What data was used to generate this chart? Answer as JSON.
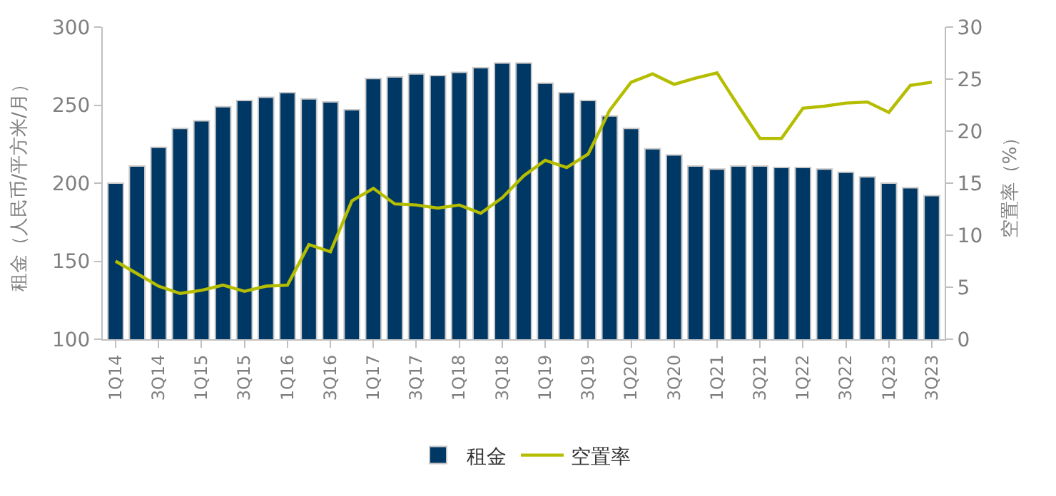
{
  "chart_data": {
    "type": "bar",
    "categories": [
      "1Q14",
      null,
      "3Q14",
      null,
      "1Q15",
      null,
      "3Q15",
      null,
      "1Q16",
      null,
      "3Q16",
      null,
      "1Q17",
      null,
      "3Q17",
      null,
      "1Q18",
      null,
      "3Q18",
      null,
      "1Q19",
      null,
      "3Q19",
      null,
      "1Q20",
      null,
      "3Q20",
      null,
      "1Q21",
      null,
      "3Q21",
      null,
      "1Q22",
      null,
      "3Q22",
      null,
      "1Q23",
      null,
      "3Q23"
    ],
    "ylabel": "租金（人民币/平方米/月）",
    "y2label": "空置率（%）",
    "series": [
      {
        "name": "租金",
        "color": "#003865",
        "values": [
          200,
          211,
          223,
          235,
          240,
          249,
          253,
          255,
          258,
          254,
          252,
          247,
          267,
          268,
          270,
          269,
          271,
          274,
          277,
          277,
          264,
          258,
          253,
          243,
          235,
          222,
          218,
          211,
          209,
          211,
          211,
          210,
          210,
          209,
          207,
          204,
          200,
          197,
          192
        ]
      },
      {
        "name": "空置率",
        "type": "line",
        "axis": "y2",
        "color": "#b5bd00",
        "values": [
          7.5,
          6.3,
          5.1,
          4.4,
          4.7,
          5.2,
          4.6,
          5.1,
          5.2,
          9.1,
          8.4,
          13.3,
          14.5,
          13.0,
          12.9,
          12.6,
          12.9,
          12.1,
          13.6,
          15.7,
          17.2,
          16.5,
          17.8,
          22.0,
          24.7,
          25.5,
          24.5,
          25.1,
          25.6,
          22.4,
          19.3,
          19.3,
          22.2,
          22.4,
          22.7,
          22.8,
          21.8,
          24.4,
          24.7
        ]
      }
    ],
    "ylim": [
      100,
      300
    ],
    "yticks": [
      100,
      150,
      200,
      250,
      300
    ],
    "y2lim": [
      0,
      30
    ],
    "y2ticks": [
      0,
      5,
      10,
      15,
      20,
      25,
      30
    ],
    "legend": "bottom",
    "marker": "none",
    "line_style": "solid"
  }
}
